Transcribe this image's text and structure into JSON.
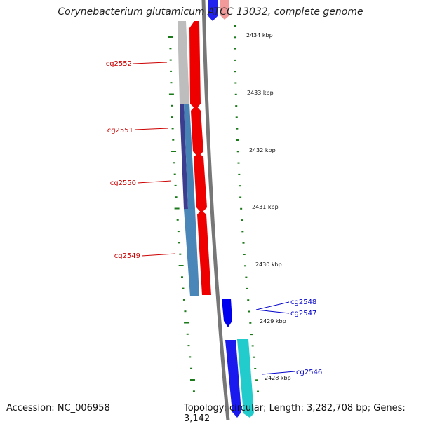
{
  "map": {
    "title": "Corynebacterium glutamicum ATCC 13032, complete genome",
    "accession": "Accession: NC_006958",
    "summary": "Topology: circular; Length: 3,282,708 bp; Genes: 3,142"
  },
  "ticks": [
    "2434 kbp",
    "2433 kbp",
    "2432 kbp",
    "2431 kbp",
    "2430 kbp",
    "2429 kbp",
    "2428 kbp"
  ],
  "genes_reverse": [
    {
      "label": "cg2552",
      "color": "#cc0000"
    },
    {
      "label": "cg2551",
      "color": "#cc0000"
    },
    {
      "label": "cg2550",
      "color": "#cc0000"
    },
    {
      "label": "cg2549",
      "color": "#cc0000"
    }
  ],
  "genes_forward": [
    {
      "label": "cg2548",
      "color": "#0000cc"
    },
    {
      "label": "cg2547",
      "color": "#0000cc"
    },
    {
      "label": "cg2546",
      "color": "#0000cc"
    }
  ],
  "colors": {
    "backbone": "#777777",
    "tick": "#1a7a1a",
    "red": "#ee0000",
    "blue": "#0000ee",
    "cyan": "#22cccc",
    "steelblue": "#4682b4",
    "navy": "#3d3d8f",
    "gray": "#bbbbbb"
  }
}
